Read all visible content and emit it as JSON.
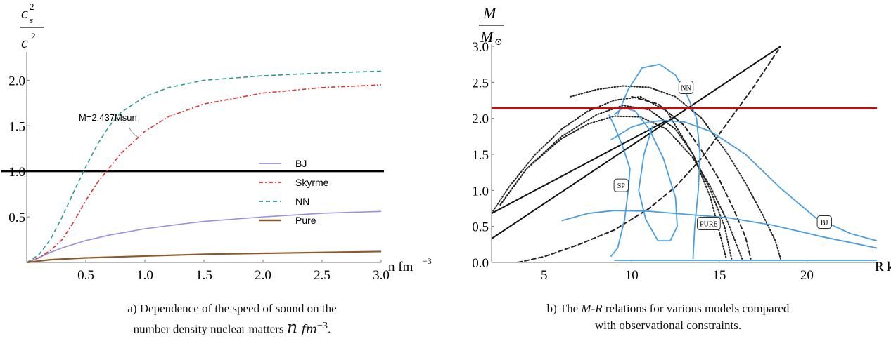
{
  "captions": {
    "a": {
      "line1": "a) Dependence of the speed of sound on the",
      "line2_text": "number density nuclear matters ",
      "line2_n": "n",
      "line2_unit": " fm",
      "line2_exp": "−3",
      "line2_end": "."
    },
    "b": {
      "line1_pre": "b) The ",
      "line1_mr": "M-R",
      "line1_post": " relations for various models compared",
      "line2": "with observational constraints."
    }
  },
  "chart_data": [
    {
      "type": "line",
      "ylabel_num": "c",
      "ylabel_num_sup": "2",
      "ylabel_num_sub": "s",
      "ylabel_den": "c",
      "ylabel_den_sup": "2",
      "xlabel_main": "n fm",
      "xlabel_exp": "−3",
      "xlim": [
        0,
        3.0
      ],
      "ylim": [
        0,
        2.25
      ],
      "xticks": [
        "0.5",
        "1.0",
        "1.5",
        "2.0",
        "2.5",
        "3.0"
      ],
      "yticks": [
        "0.5",
        "1.0",
        "1.5",
        "2.0"
      ],
      "legend_position": "right-middle",
      "annotation": "M=2.437Msun",
      "reference_line": 1.0,
      "series": [
        {
          "name": "BJ",
          "color": "#9b8ee0",
          "style": "solid",
          "x": [
            0,
            0.1,
            0.2,
            0.3,
            0.5,
            0.7,
            1.0,
            1.3,
            1.5,
            2.0,
            2.5,
            3.0
          ],
          "y": [
            0,
            0.05,
            0.11,
            0.16,
            0.24,
            0.3,
            0.37,
            0.42,
            0.45,
            0.5,
            0.54,
            0.56
          ]
        },
        {
          "name": "Skyrme",
          "color": "#e03030",
          "style": "dashdot",
          "x": [
            0,
            0.1,
            0.2,
            0.3,
            0.4,
            0.5,
            0.6,
            0.7,
            0.8,
            1.0,
            1.2,
            1.5,
            2.0,
            2.5,
            3.0
          ],
          "y": [
            0,
            0.05,
            0.13,
            0.25,
            0.45,
            0.68,
            0.88,
            1.04,
            1.2,
            1.44,
            1.6,
            1.74,
            1.86,
            1.92,
            1.95
          ]
        },
        {
          "name": "NN",
          "color": "#2a9d8f",
          "style": "dashed",
          "x": [
            0,
            0.1,
            0.2,
            0.3,
            0.4,
            0.5,
            0.6,
            0.7,
            0.8,
            1.0,
            1.2,
            1.5,
            2.0,
            2.5,
            3.0
          ],
          "y": [
            0,
            0.08,
            0.25,
            0.5,
            0.78,
            1.05,
            1.3,
            1.5,
            1.65,
            1.82,
            1.92,
            2.0,
            2.05,
            2.08,
            2.1
          ]
        },
        {
          "name": "Pure",
          "color": "#8b5a2b",
          "style": "solid",
          "x": [
            0,
            0.2,
            0.5,
            1.0,
            1.5,
            2.0,
            2.5,
            3.0
          ],
          "y": [
            0,
            0.03,
            0.05,
            0.07,
            0.09,
            0.1,
            0.11,
            0.12
          ]
        }
      ]
    },
    {
      "type": "line",
      "ylabel_num": "M",
      "ylabel_den": "M",
      "ylabel_den_sub": "⊙",
      "xlabel": "R km",
      "xlim": [
        2,
        24
      ],
      "ylim": [
        0,
        3.0
      ],
      "xticks": [
        "5",
        "10",
        "15",
        "20"
      ],
      "yticks": [
        "0.0",
        "0.5",
        "1.0",
        "1.5",
        "2.0",
        "2.5",
        "3.0"
      ],
      "observational_limit": 2.14,
      "labels": [
        "NN",
        "SP",
        "PURE",
        "BJ"
      ],
      "model_curves": [
        {
          "label": "NN",
          "color": "#4a9ee0",
          "x": [
            13.5,
            13.6,
            13.8,
            13.9,
            13.7,
            13.2,
            12.5,
            11.6,
            10.6,
            9.8,
            9.2
          ],
          "y": [
            0.05,
            0.5,
            1.0,
            1.5,
            2.0,
            2.3,
            2.6,
            2.75,
            2.7,
            2.4,
            2.05
          ]
        },
        {
          "label": "BJ",
          "color": "#4a9ee0",
          "x": [
            8.8,
            10.0,
            11.0,
            11.8,
            13.0,
            14.5,
            16.5,
            18.5,
            20.5,
            22.5,
            24.0
          ],
          "y": [
            1.7,
            1.88,
            1.95,
            1.97,
            1.95,
            1.82,
            1.5,
            1.03,
            0.62,
            0.4,
            0.3
          ]
        },
        {
          "label": "SP",
          "color": "#4a9ee0",
          "x": [
            9.0,
            9.5,
            10.2,
            11.0,
            11.8,
            12.5,
            12.6,
            12.2,
            11.5,
            10.8,
            10.4,
            10.7,
            11.2
          ],
          "y": [
            2.05,
            2.15,
            2.1,
            1.85,
            1.45,
            0.9,
            0.5,
            0.3,
            0.3,
            0.6,
            1.0,
            1.5,
            1.9
          ]
        },
        {
          "label": "PURE",
          "color": "#4a9ee0",
          "x": [
            6.0,
            7.5,
            9.0,
            11.0,
            13.0,
            15.5,
            18.0,
            21.0,
            24.0
          ],
          "y": [
            0.58,
            0.68,
            0.72,
            0.71,
            0.67,
            0.62,
            0.52,
            0.35,
            0.2
          ]
        },
        {
          "label": "SP-branch",
          "color": "#4a9ee0",
          "x": [
            8.8,
            9.2,
            9.6,
            9.8,
            9.9,
            9.5,
            9.0,
            8.7
          ],
          "y": [
            0.08,
            0.2,
            0.6,
            1.0,
            1.3,
            1.6,
            1.9,
            2.05
          ]
        },
        {
          "label": "tail",
          "color": "#4a9ee0",
          "x": [
            9.0,
            12.0,
            16.0,
            20.0,
            24.0
          ],
          "y": [
            0.03,
            0.03,
            0.03,
            0.03,
            0.03
          ]
        }
      ],
      "constraint_curves": [
        {
          "style": "dotted",
          "x": [
            2.0,
            3.0,
            4.5,
            6.0,
            7.5,
            9.0,
            10.5,
            12.0,
            13.5,
            14.5,
            15.4
          ],
          "y": [
            0.68,
            1.05,
            1.5,
            1.85,
            2.1,
            2.25,
            2.3,
            2.1,
            1.5,
            0.9,
            0.05
          ]
        },
        {
          "style": "dotted",
          "x": [
            2.5,
            4.0,
            6.0,
            8.0,
            9.5,
            11.0,
            12.5,
            13.5,
            14.5,
            15.3,
            15.7
          ],
          "y": [
            0.8,
            1.3,
            1.75,
            2.05,
            2.18,
            2.12,
            1.85,
            1.5,
            1.0,
            0.5,
            0.05
          ]
        },
        {
          "style": "dotted",
          "x": [
            2.5,
            4.0,
            6.0,
            7.5,
            9.0,
            10.5,
            12.0,
            13.5,
            14.5,
            15.5,
            16.3
          ],
          "y": [
            0.8,
            1.3,
            1.72,
            1.92,
            2.03,
            2.02,
            1.85,
            1.45,
            1.05,
            0.55,
            0.05
          ]
        },
        {
          "style": "dotted",
          "x": [
            6.5,
            8.0,
            9.5,
            11.0,
            12.5,
            14.0,
            15.5,
            16.5,
            17.5,
            18.2,
            18.5
          ],
          "y": [
            2.3,
            2.4,
            2.45,
            2.43,
            2.3,
            2.0,
            1.5,
            1.1,
            0.65,
            0.3,
            0.05
          ]
        },
        {
          "style": "dashed",
          "x": [
            3.5,
            5.0,
            7.0,
            9.0,
            11.0,
            12.5,
            14.0,
            15.5,
            17.0,
            18.5
          ],
          "y": [
            0.0,
            0.08,
            0.25,
            0.45,
            0.75,
            1.05,
            1.45,
            1.95,
            2.45,
            3.0
          ]
        },
        {
          "style": "dashed",
          "x": [
            10.0,
            11.5,
            13.0,
            14.0,
            15.0,
            15.8,
            16.5,
            16.8
          ],
          "y": [
            2.3,
            2.2,
            1.9,
            1.55,
            1.15,
            0.75,
            0.35,
            0.05
          ]
        }
      ],
      "black_line": {
        "x": [
          2.0,
          18.5
        ],
        "y": [
          0.33,
          3.0
        ]
      },
      "black_line2": {
        "x": [
          2.0,
          12.0
        ],
        "y": [
          0.68,
          1.97
        ]
      }
    }
  ]
}
